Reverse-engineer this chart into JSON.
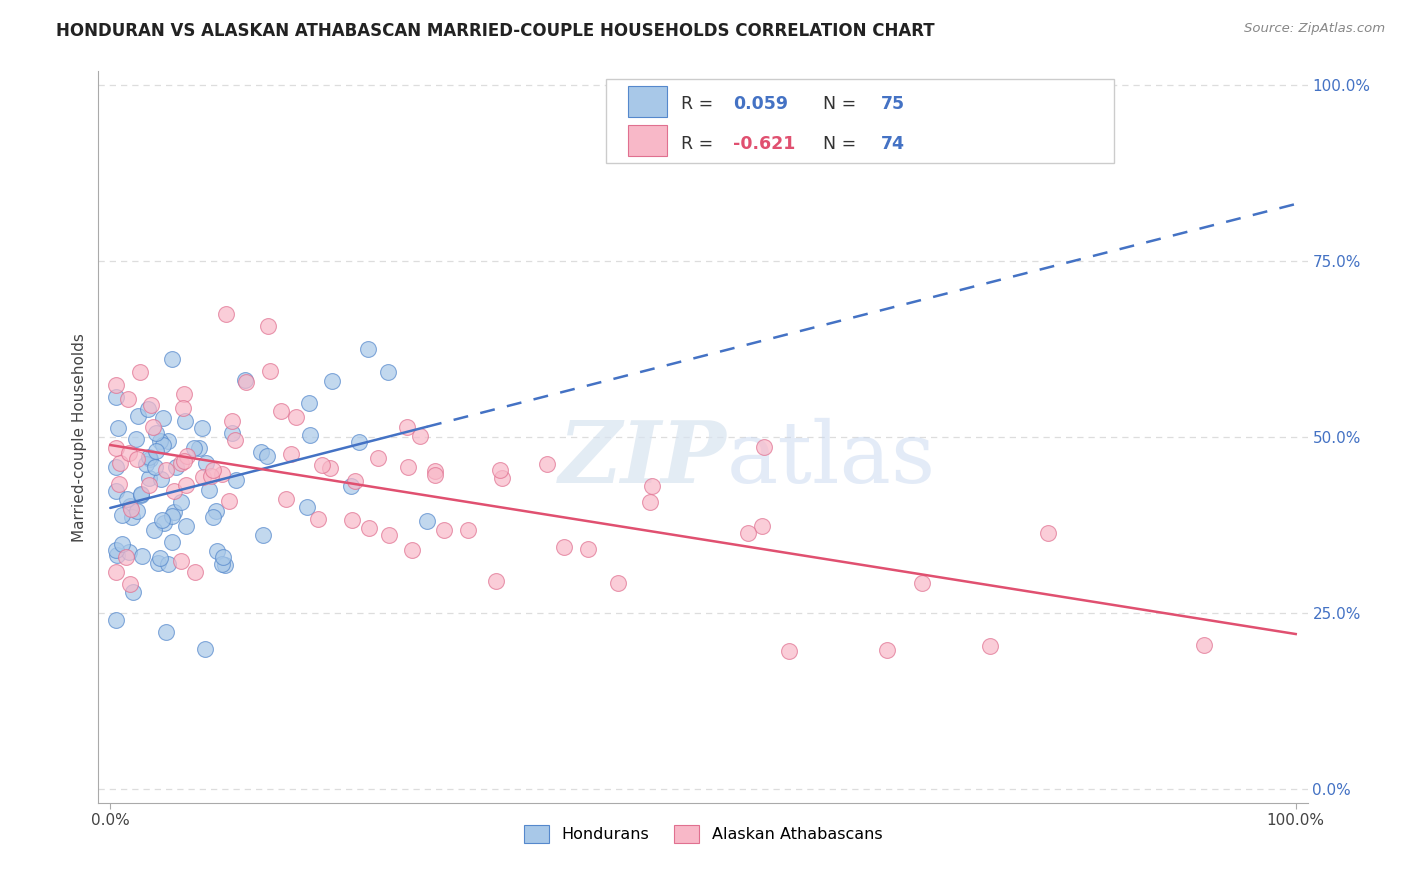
{
  "title": "HONDURAN VS ALASKAN ATHABASCAN MARRIED-COUPLE HOUSEHOLDS CORRELATION CHART",
  "source": "Source: ZipAtlas.com",
  "ylabel": "Married-couple Households",
  "ytick_vals": [
    0,
    25,
    50,
    75,
    100
  ],
  "legend_label1": "Hondurans",
  "legend_label2": "Alaskan Athabascans",
  "r1": 0.059,
  "n1": 75,
  "r2": -0.621,
  "n2": 74,
  "blue_fill": "#a8c8e8",
  "blue_edge": "#5588cc",
  "pink_fill": "#f8b8c8",
  "pink_edge": "#e07090",
  "line_blue": "#4472c4",
  "line_pink": "#e05070",
  "background_color": "#ffffff",
  "grid_color": "#dddddd",
  "title_color": "#222222",
  "axis_color": "#aaaaaa",
  "right_tick_color": "#4472c4"
}
